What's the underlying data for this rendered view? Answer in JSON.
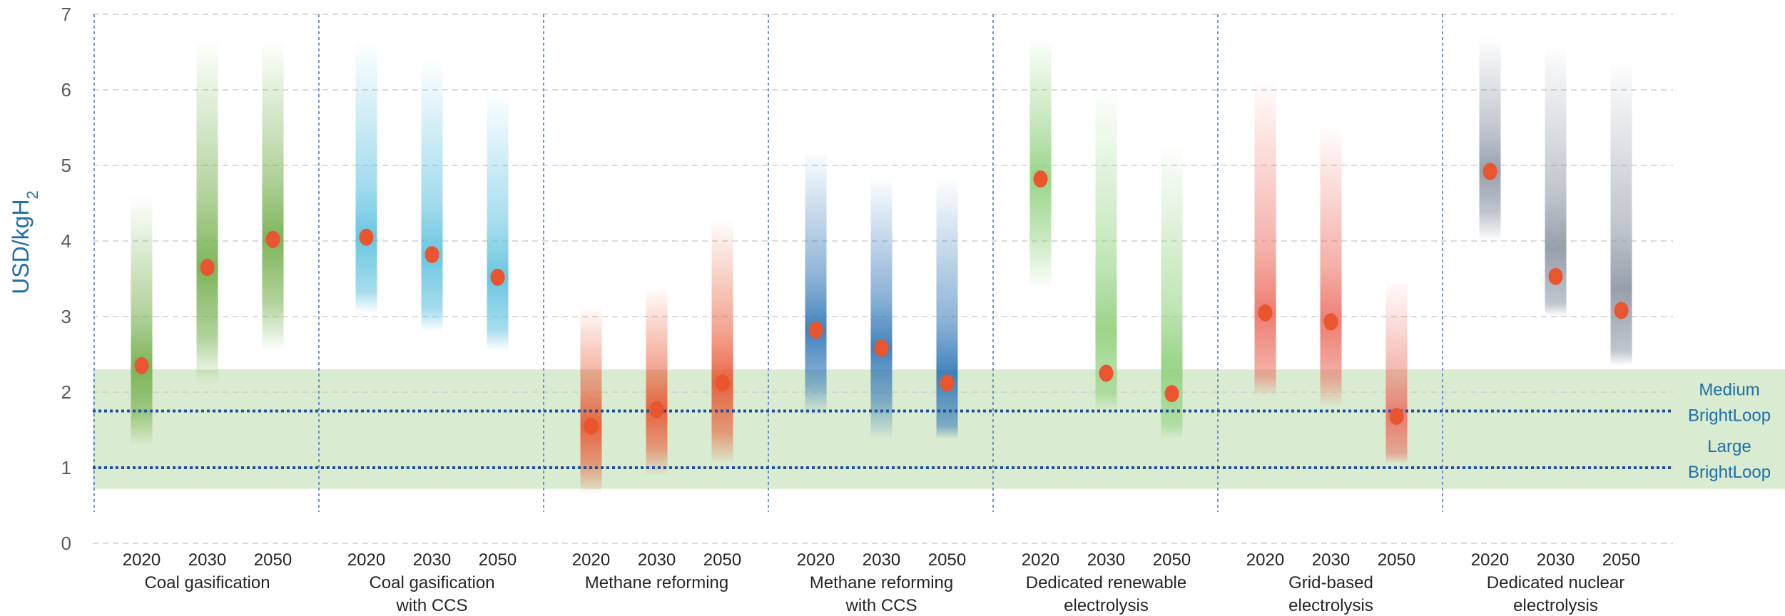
{
  "chart_data": {
    "type": "range-bar",
    "ylabel": "USD/kgH",
    "ylabel_sub": "2",
    "ylim": [
      0,
      7
    ],
    "yticks": [
      "0",
      "1",
      "2",
      "3",
      "4",
      "5",
      "6",
      "7"
    ],
    "grid": "horizontal dashed",
    "categories": [
      {
        "label_lines": [
          "Coal gasification"
        ],
        "color": "#70ad47",
        "bars": [
          {
            "year": "2020",
            "low": 1.3,
            "high": 4.6,
            "point": 2.35
          },
          {
            "year": "2030",
            "low": 2.1,
            "high": 6.65,
            "point": 3.65
          },
          {
            "year": "2050",
            "low": 2.55,
            "high": 6.65,
            "point": 4.02
          }
        ]
      },
      {
        "label_lines": [
          "Coal gasification",
          "with CCS"
        ],
        "color": "#5bc0de",
        "bars": [
          {
            "year": "2020",
            "low": 3.05,
            "high": 6.65,
            "point": 4.05
          },
          {
            "year": "2030",
            "low": 2.8,
            "high": 6.4,
            "point": 3.82
          },
          {
            "year": "2050",
            "low": 2.55,
            "high": 6.0,
            "point": 3.52
          }
        ]
      },
      {
        "label_lines": [
          "Methane reforming"
        ],
        "color": "#e8552f",
        "bars": [
          {
            "year": "2020",
            "low": 0.65,
            "high": 3.15,
            "point": 1.55
          },
          {
            "year": "2030",
            "low": 0.9,
            "high": 3.4,
            "point": 1.77
          },
          {
            "year": "2050",
            "low": 1.05,
            "high": 4.3,
            "point": 2.12
          }
        ]
      },
      {
        "label_lines": [
          "Methane reforming",
          "with CCS"
        ],
        "color": "#2e75b6",
        "bars": [
          {
            "year": "2020",
            "low": 1.7,
            "high": 5.2,
            "point": 2.82
          },
          {
            "year": "2030",
            "low": 1.38,
            "high": 4.85,
            "point": 2.58
          },
          {
            "year": "2050",
            "low": 1.38,
            "high": 4.85,
            "point": 2.12
          }
        ]
      },
      {
        "label_lines": [
          "Dedicated renewable",
          "electrolysis"
        ],
        "color": "#8ed07b",
        "bars": [
          {
            "year": "2020",
            "low": 3.35,
            "high": 6.7,
            "point": 4.82
          },
          {
            "year": "2030",
            "low": 1.75,
            "high": 6.05,
            "point": 2.25
          },
          {
            "year": "2050",
            "low": 1.38,
            "high": 5.3,
            "point": 1.98
          }
        ]
      },
      {
        "label_lines": [
          "Grid-based",
          "electrolysis"
        ],
        "color": "#ec7063",
        "bars": [
          {
            "year": "2020",
            "low": 1.95,
            "high": 6.15,
            "point": 3.05
          },
          {
            "year": "2030",
            "low": 1.8,
            "high": 5.55,
            "point": 2.93
          },
          {
            "year": "2050",
            "low": 1.05,
            "high": 3.5,
            "point": 1.68
          }
        ]
      },
      {
        "label_lines": [
          "Dedicated nuclear",
          "electrolysis"
        ],
        "color": "#8c95a3",
        "bars": [
          {
            "year": "2020",
            "low": 4.0,
            "high": 6.7,
            "point": 4.92
          },
          {
            "year": "2030",
            "low": 3.0,
            "high": 6.6,
            "point": 3.53
          },
          {
            "year": "2050",
            "low": 2.35,
            "high": 6.4,
            "point": 3.08
          }
        ]
      }
    ],
    "point_color": "#e8552f",
    "band": {
      "low": 0.72,
      "high": 2.3,
      "color": "#d9ebd0"
    },
    "reference_lines": [
      {
        "y": 1.75,
        "label_lines": [
          "Medium",
          "BrightLoop"
        ],
        "color": "#1f4e99"
      },
      {
        "y": 1.0,
        "label_lines": [
          "Large",
          "BrightLoop"
        ],
        "color": "#1f4e99"
      }
    ]
  }
}
